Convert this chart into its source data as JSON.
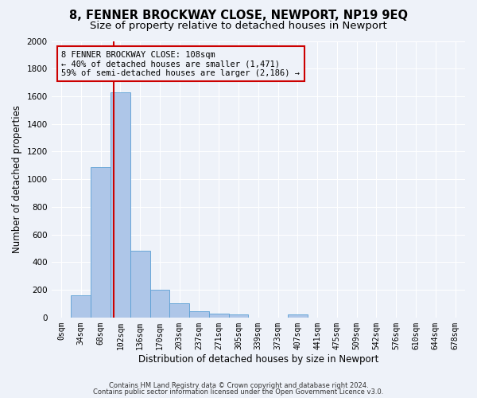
{
  "title": "8, FENNER BROCKWAY CLOSE, NEWPORT, NP19 9EQ",
  "subtitle": "Size of property relative to detached houses in Newport",
  "xlabel": "Distribution of detached houses by size in Newport",
  "ylabel": "Number of detached properties",
  "footer_line1": "Contains HM Land Registry data © Crown copyright and database right 2024.",
  "footer_line2": "Contains public sector information licensed under the Open Government Licence v3.0.",
  "bin_labels": [
    "0sqm",
    "34sqm",
    "68sqm",
    "102sqm",
    "136sqm",
    "170sqm",
    "203sqm",
    "237sqm",
    "271sqm",
    "305sqm",
    "339sqm",
    "373sqm",
    "407sqm",
    "441sqm",
    "475sqm",
    "509sqm",
    "542sqm",
    "576sqm",
    "610sqm",
    "644sqm",
    "678sqm"
  ],
  "bar_values": [
    0,
    160,
    1090,
    1630,
    480,
    200,
    100,
    45,
    30,
    20,
    0,
    0,
    20,
    0,
    0,
    0,
    0,
    0,
    0,
    0,
    0
  ],
  "bar_color": "#aec6e8",
  "bar_edge_color": "#5a9fd4",
  "red_line_color": "#cc0000",
  "annotation_text": "8 FENNER BROCKWAY CLOSE: 108sqm\n← 40% of detached houses are smaller (1,471)\n59% of semi-detached houses are larger (2,186) →",
  "annotation_box_color": "#cc0000",
  "ylim": [
    0,
    2000
  ],
  "yticks": [
    0,
    200,
    400,
    600,
    800,
    1000,
    1200,
    1400,
    1600,
    1800,
    2000
  ],
  "bg_color": "#eef2f9",
  "grid_color": "#ffffff",
  "title_fontsize": 10.5,
  "subtitle_fontsize": 9.5,
  "axis_label_fontsize": 8.5,
  "tick_fontsize": 7,
  "footer_fontsize": 6,
  "annotation_fontsize": 7.5
}
